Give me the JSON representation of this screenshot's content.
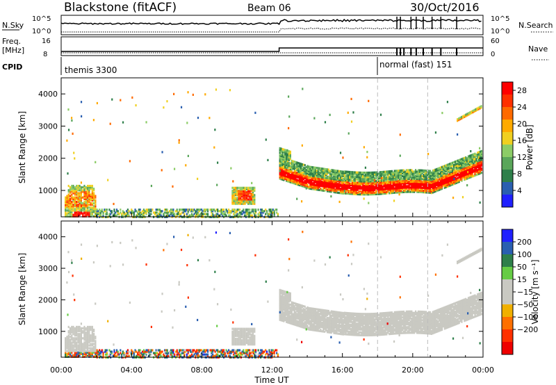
{
  "header": {
    "station": "Blackstone (fitACF)",
    "beam": "Beam 06",
    "date": "30/Oct/2016"
  },
  "params": {
    "nsky_label": "N.Sky",
    "nsky_ticks": [
      "10^5",
      "10^0"
    ],
    "nsearch_label": "N.Search",
    "nsearch_ticks": [
      "10^5",
      "10^0"
    ],
    "freq_label_1": "Freq.",
    "freq_label_2": "[MHz]",
    "freq_ticks": [
      "16",
      "8"
    ],
    "nave_label": "Nave",
    "nave_ticks": [
      "60",
      "0"
    ],
    "cpid_label": "CPID",
    "cpid_segments": [
      {
        "label": "themis 3300",
        "start_hour": 0
      },
      {
        "label": "normal (fast) 151",
        "start_hour": 18
      }
    ]
  },
  "colors": {
    "power_scale": [
      "#2020ff",
      "#2a5fb0",
      "#2e7f4a",
      "#5aa65a",
      "#8ccc66",
      "#f0d020",
      "#ffaa00",
      "#ff6a00",
      "#ff3000",
      "#ff0000"
    ],
    "velocity_scale": [
      "#2020ff",
      "#2a5fb0",
      "#2e7f4a",
      "#66cc44",
      "#c9c9c2",
      "#c9c9c2",
      "#f0b000",
      "#ff7000",
      "#ff3000",
      "#ee0000"
    ],
    "ground_scatter": "#c9c9c2"
  },
  "chart_data": [
    {
      "type": "heatmap",
      "panel": "power",
      "xlabel": "",
      "ylabel": "Slant Range [km]",
      "xlim": [
        0,
        24
      ],
      "ylim": [
        180,
        4500
      ],
      "yticks": [
        "4000",
        "3000",
        "2000",
        "1000"
      ],
      "ytick_values": [
        4000,
        3000,
        2000,
        1000
      ],
      "colorbar_label": "Power [dB]",
      "colorbar_ticks": [
        "28",
        "24",
        "20",
        "16",
        "12",
        "8",
        "4"
      ],
      "colorbar_values": [
        28,
        24,
        20,
        16,
        12,
        8,
        4
      ],
      "colorbar_range": [
        0,
        30
      ],
      "features": [
        {
          "name": "near-range echoes 00-02",
          "x": [
            0.2,
            2.0
          ],
          "y": [
            220,
            1200
          ],
          "peak_db": 30
        },
        {
          "name": "patch 10-11",
          "x": [
            9.7,
            11.0
          ],
          "y": [
            600,
            1150
          ],
          "peak_db": 24
        },
        {
          "name": "main band 12:30-24",
          "x": [
            12.4,
            24.0
          ],
          "y": [
            900,
            2200
          ],
          "peak_db": 30
        }
      ]
    },
    {
      "type": "heatmap",
      "panel": "velocity",
      "xlabel": "Time UT",
      "ylabel": "Slant Range [km]",
      "xlim": [
        0,
        24
      ],
      "ylim": [
        180,
        4500
      ],
      "xticks": [
        "00:00",
        "04:00",
        "08:00",
        "12:00",
        "16:00",
        "20:00",
        "00:00"
      ],
      "xtick_values": [
        0,
        4,
        8,
        12,
        16,
        20,
        24
      ],
      "yticks": [
        "4000",
        "3000",
        "2000",
        "1000"
      ],
      "ytick_values": [
        4000,
        3000,
        2000,
        1000
      ],
      "colorbar_label": "Velocity [m s⁻¹]",
      "colorbar_ticks": [
        "200",
        "100",
        "50",
        "15",
        "−15",
        "−50",
        "−100",
        "−200"
      ],
      "colorbar_values": [
        200,
        100,
        50,
        15,
        -15,
        -50,
        -100,
        -200
      ],
      "features": [
        {
          "name": "ground scatter band",
          "x": [
            12.4,
            24.0
          ],
          "y": [
            900,
            2200
          ],
          "velocity": 0
        },
        {
          "name": "near-range ionospheric echoes",
          "x": [
            0.2,
            12.0
          ],
          "y": [
            200,
            500
          ],
          "velocity_range": [
            -200,
            200
          ]
        }
      ]
    }
  ]
}
